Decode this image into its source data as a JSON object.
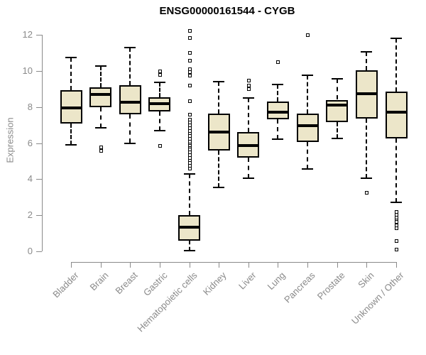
{
  "title": "ENSG00000161544 - CYGB",
  "chart_data": {
    "type": "boxplot",
    "title": "ENSG00000161544 - CYGB",
    "xlabel": "",
    "ylabel": "Expression",
    "ylim": [
      0,
      12
    ],
    "yticks": [
      0,
      2,
      4,
      6,
      8,
      10,
      12
    ],
    "grid": false,
    "legend": "none",
    "colors": {
      "box_fill": "#ece6c9",
      "box_stroke": "#000000",
      "median": "#000000",
      "axis": "#8a8a8a",
      "axis_text": "#8a8a8a",
      "title_text": "#000000",
      "background": "#ffffff"
    },
    "categories": [
      "Bladder",
      "Brain",
      "Breast",
      "Gastric",
      "Hematopoietic cells",
      "Kidney",
      "Liver",
      "Lung",
      "Pancreas",
      "Prostate",
      "Skin",
      "Unknown / Other"
    ],
    "series": [
      {
        "name": "Bladder",
        "whisker_low": 5.9,
        "q1": 7.1,
        "median": 7.95,
        "q3": 8.95,
        "whisker_high": 10.75,
        "outliers": []
      },
      {
        "name": "Brain",
        "whisker_low": 6.85,
        "q1": 8.0,
        "median": 8.7,
        "q3": 9.1,
        "whisker_high": 10.25,
        "outliers": [
          5.8,
          5.6
        ]
      },
      {
        "name": "Breast",
        "whisker_low": 6.0,
        "q1": 7.6,
        "median": 8.25,
        "q3": 9.2,
        "whisker_high": 11.3,
        "outliers": []
      },
      {
        "name": "Gastric",
        "whisker_low": 6.7,
        "q1": 7.75,
        "median": 8.2,
        "q3": 8.55,
        "whisker_high": 9.35,
        "outliers": [
          10.0,
          9.8,
          5.85
        ]
      },
      {
        "name": "Hematopoietic cells",
        "whisker_low": 0.05,
        "q1": 0.6,
        "median": 1.35,
        "q3": 2.0,
        "whisker_high": 4.3,
        "outliers": [
          12.25,
          11.85,
          11.0,
          10.6,
          10.1,
          9.95,
          9.75,
          9.2,
          8.35,
          7.6,
          7.3,
          7.15,
          7.0,
          6.85,
          6.7,
          6.55,
          6.4,
          6.25,
          6.1,
          5.95,
          5.85,
          5.75,
          5.65,
          5.5,
          5.35,
          5.2,
          5.05,
          4.9,
          4.75,
          4.6
        ]
      },
      {
        "name": "Kidney",
        "whisker_low": 3.55,
        "q1": 5.6,
        "median": 6.6,
        "q3": 7.65,
        "whisker_high": 9.4,
        "outliers": []
      },
      {
        "name": "Liver",
        "whisker_low": 4.05,
        "q1": 5.2,
        "median": 5.85,
        "q3": 6.6,
        "whisker_high": 8.5,
        "outliers": [
          9.5,
          9.2,
          9.0
        ]
      },
      {
        "name": "Lung",
        "whisker_low": 6.2,
        "q1": 7.3,
        "median": 7.7,
        "q3": 8.3,
        "whisker_high": 9.25,
        "outliers": [
          10.5
        ]
      },
      {
        "name": "Pancreas",
        "whisker_low": 4.55,
        "q1": 6.05,
        "median": 6.95,
        "q3": 7.65,
        "whisker_high": 9.75,
        "outliers": [
          12.0
        ]
      },
      {
        "name": "Prostate",
        "whisker_low": 6.25,
        "q1": 7.15,
        "median": 8.1,
        "q3": 8.4,
        "whisker_high": 9.55,
        "outliers": []
      },
      {
        "name": "Skin",
        "whisker_low": 4.05,
        "q1": 7.35,
        "median": 8.75,
        "q3": 10.05,
        "whisker_high": 11.05,
        "outliers": [
          3.25
        ]
      },
      {
        "name": "Unknown / Other",
        "whisker_low": 2.7,
        "q1": 6.25,
        "median": 7.7,
        "q3": 8.85,
        "whisker_high": 11.8,
        "outliers": [
          2.2,
          2.05,
          1.9,
          1.75,
          1.65,
          1.45,
          1.3,
          0.6,
          0.1
        ]
      }
    ]
  }
}
